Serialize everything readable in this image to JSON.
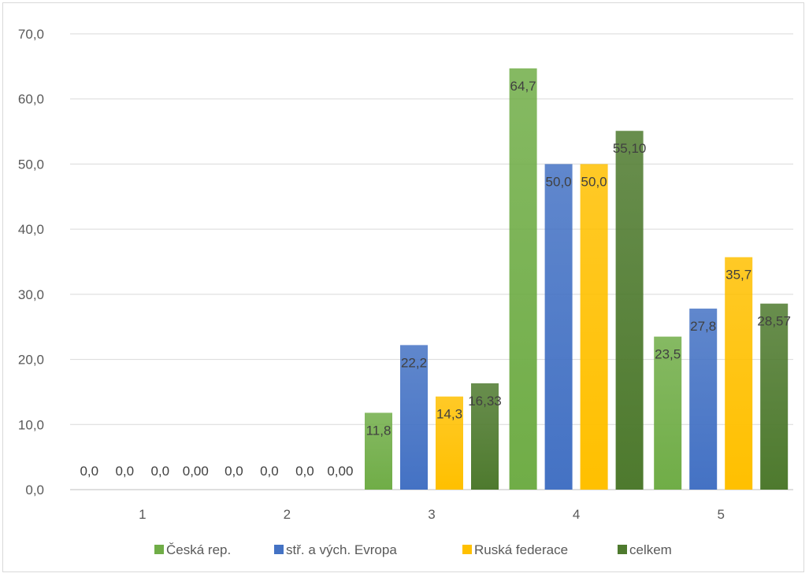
{
  "chart_data": {
    "type": "bar",
    "categories": [
      "1",
      "2",
      "3",
      "4",
      "5"
    ],
    "ylim": [
      0,
      70
    ],
    "yticks": [
      "0,0",
      "10,0",
      "20,0",
      "30,0",
      "40,0",
      "50,0",
      "60,0",
      "70,0"
    ],
    "grid": true,
    "legend_position": "bottom",
    "series": [
      {
        "name": "Česká rep.",
        "color": "#70ad47",
        "values": [
          0,
          0,
          11.8,
          64.7,
          23.5
        ],
        "labels": [
          "0,0",
          "0,0",
          "11,8",
          "64,7",
          "23,5"
        ]
      },
      {
        "name": "stř. a vých. Evropa",
        "color": "#4472c4",
        "values": [
          0,
          0,
          22.2,
          50.0,
          27.8
        ],
        "labels": [
          "0,0",
          "0,0",
          "22,2",
          "50,0",
          "27,8"
        ]
      },
      {
        "name": "Ruská federace",
        "color": "#ffc000",
        "values": [
          0,
          0,
          14.3,
          50.0,
          35.7
        ],
        "labels": [
          "0,0",
          "0,0",
          "14,3",
          "50,0",
          "35,7"
        ]
      },
      {
        "name": "celkem",
        "color": "#4e7a2e",
        "values": [
          0,
          0,
          16.33,
          55.1,
          28.57
        ],
        "labels": [
          "0,00",
          "0,00",
          "16,33",
          "55,10",
          "28,57"
        ]
      }
    ]
  }
}
